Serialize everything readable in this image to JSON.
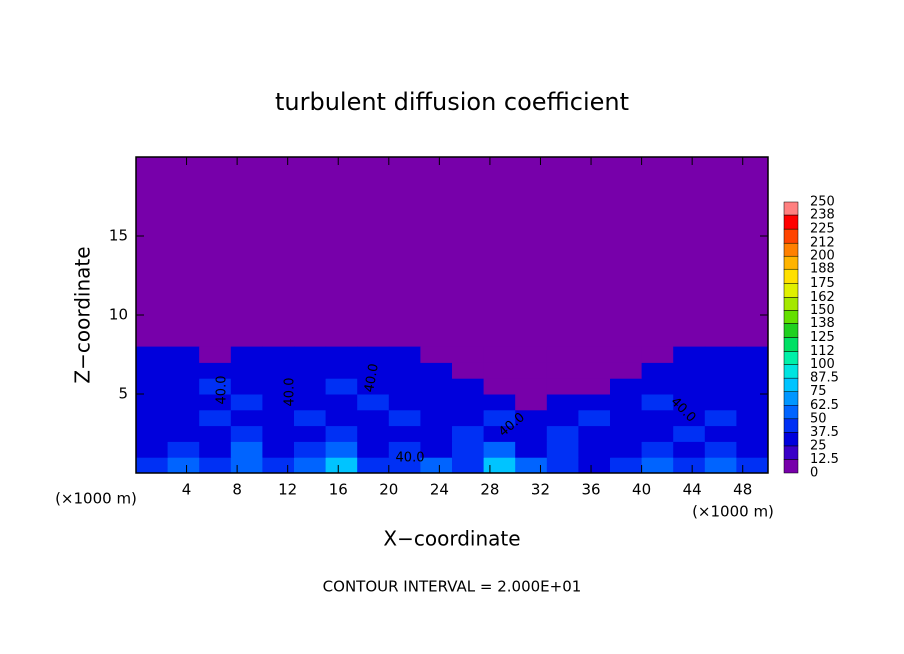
{
  "chart_data": {
    "type": "contour",
    "title": "turbulent diffusion coefficient",
    "x_label": "X−coordinate",
    "y_label": "Z−coordinate",
    "x_unit": "(×1000 m)",
    "x_unit_right": "(×1000 m)",
    "footer": "CONTOUR INTERVAL = 2.000E+01",
    "xlim": [
      0,
      50
    ],
    "xticks": [
      4,
      8,
      12,
      16,
      20,
      24,
      28,
      32,
      36,
      40,
      44,
      48
    ],
    "ylim": [
      0,
      20
    ],
    "yticks": [
      5,
      10,
      15
    ],
    "background_color": "#7700aa",
    "field": {
      "x_edges": [
        0,
        2.5,
        5,
        7.5,
        10,
        12.5,
        15,
        17.5,
        20,
        22.5,
        25,
        27.5,
        30,
        32.5,
        35,
        37.5,
        40,
        42.5,
        45,
        47.5,
        50
      ],
      "z_edges": [
        0,
        1,
        2,
        3,
        4,
        5,
        6,
        7,
        8
      ],
      "values": [
        [
          45,
          60,
          45,
          60,
          45,
          60,
          80,
          45,
          45,
          60,
          45,
          80,
          60,
          45,
          30,
          45,
          60,
          45,
          60,
          45
        ],
        [
          30,
          45,
          30,
          60,
          30,
          45,
          60,
          30,
          45,
          30,
          45,
          60,
          30,
          45,
          30,
          30,
          45,
          30,
          45,
          30
        ],
        [
          30,
          30,
          30,
          45,
          30,
          30,
          45,
          30,
          30,
          30,
          45,
          30,
          30,
          45,
          30,
          30,
          30,
          45,
          30,
          30
        ],
        [
          30,
          30,
          45,
          30,
          30,
          45,
          30,
          30,
          45,
          30,
          30,
          45,
          30,
          30,
          45,
          30,
          30,
          30,
          45,
          30
        ],
        [
          30,
          30,
          30,
          45,
          30,
          30,
          30,
          45,
          30,
          30,
          30,
          30,
          0,
          30,
          30,
          30,
          45,
          30,
          30,
          30
        ],
        [
          30,
          30,
          45,
          30,
          30,
          30,
          45,
          30,
          30,
          30,
          30,
          0,
          0,
          0,
          0,
          30,
          30,
          30,
          30,
          30
        ],
        [
          30,
          30,
          30,
          30,
          30,
          30,
          30,
          30,
          30,
          30,
          0,
          0,
          0,
          0,
          0,
          0,
          30,
          30,
          30,
          30
        ],
        [
          30,
          30,
          0,
          30,
          30,
          30,
          30,
          30,
          30,
          0,
          0,
          0,
          0,
          0,
          0,
          0,
          0,
          30,
          30,
          30
        ]
      ]
    },
    "contour_labels": [
      "40.0",
      "40.0",
      "40.0",
      "40.0",
      "40.0",
      "40.0"
    ],
    "colorbar": {
      "ticks": [
        0,
        12.5,
        25,
        37.5,
        50,
        62.5,
        75,
        87.5,
        100,
        112,
        125,
        138,
        150,
        162,
        175,
        188,
        200,
        212,
        225,
        238,
        250
      ],
      "colors": [
        "#7700aa",
        "#3a00c8",
        "#0000dc",
        "#0030f4",
        "#0064ff",
        "#0096ff",
        "#00c4ff",
        "#00e4e0",
        "#00f0a8",
        "#00e064",
        "#20d020",
        "#64e000",
        "#a4e800",
        "#e0f000",
        "#ffe000",
        "#ffb400",
        "#ff8000",
        "#ff4400",
        "#ff0000",
        "#ff8080"
      ]
    }
  }
}
